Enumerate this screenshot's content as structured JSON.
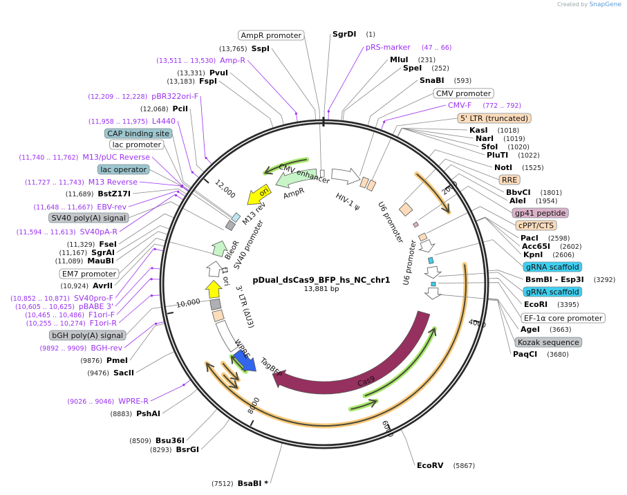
{
  "branding": {
    "prefix": "Created by",
    "name": "SnapGene"
  },
  "plasmid": {
    "name": "pDual_dsCas9_BFP_hs_NC_chr1",
    "length": "13,881 bp"
  },
  "enzymes": [
    {
      "name": "SgrDI",
      "pos": "(1)"
    },
    {
      "name": "MluI",
      "pos": "(231)"
    },
    {
      "name": "SpeI",
      "pos": "(252)"
    },
    {
      "name": "SnaBI",
      "pos": "(593)"
    },
    {
      "name": "KasI",
      "pos": "(1018)"
    },
    {
      "name": "NarI",
      "pos": "(1019)"
    },
    {
      "name": "SfoI",
      "pos": "(1020)"
    },
    {
      "name": "PluTI",
      "pos": "(1022)"
    },
    {
      "name": "NotI",
      "pos": "(1525)"
    },
    {
      "name": "BbvCI",
      "pos": "(1801)"
    },
    {
      "name": "AleI",
      "pos": "(1954)"
    },
    {
      "name": "PacI",
      "pos": "(2598)"
    },
    {
      "name": "Acc65I",
      "pos": "(2602)"
    },
    {
      "name": "KpnI",
      "pos": "(2606)"
    },
    {
      "name": "BsmBI  - Esp3I",
      "pos": "(3292)"
    },
    {
      "name": "EcoRI",
      "pos": "(3395)"
    },
    {
      "name": "AgeI",
      "pos": "(3663)"
    },
    {
      "name": "PaqCI",
      "pos": "(3680)"
    },
    {
      "name": "EcoRV",
      "pos": "(5867)"
    },
    {
      "name": "BsaBI *",
      "pos": "(7512)"
    },
    {
      "name": "BsrGI",
      "pos": "(8293)"
    },
    {
      "name": "Bsu36I",
      "pos": "(8509)"
    },
    {
      "name": "PshAI",
      "pos": "(8883)"
    },
    {
      "name": "SacII",
      "pos": "(9476)"
    },
    {
      "name": "PmeI",
      "pos": "(9876)"
    },
    {
      "name": "AvrII",
      "pos": "(10,924)"
    },
    {
      "name": "MauBI",
      "pos": "(11,089)"
    },
    {
      "name": "SgrAI",
      "pos": "(11,167)"
    },
    {
      "name": "FseI",
      "pos": "(11,329)"
    },
    {
      "name": "BstZ17I",
      "pos": "(11,689)"
    },
    {
      "name": "PciI",
      "pos": "(12,068)"
    },
    {
      "name": "FspI",
      "pos": "(13,183)"
    },
    {
      "name": "PvuI",
      "pos": "(13,331)"
    },
    {
      "name": "SspI",
      "pos": "(13,765)"
    }
  ],
  "primers": [
    {
      "name": "pRS-marker",
      "range": "(47 .. 66)"
    },
    {
      "name": "CMV-F",
      "range": "(772 .. 792)"
    },
    {
      "name": "WPRE-R",
      "range": "(9026 .. 9046)"
    },
    {
      "name": "BGH-rev",
      "range": "(9892 .. 9909)"
    },
    {
      "name": "F1ori-R",
      "range": "(10,255 .. 10,274)"
    },
    {
      "name": "F1ori-F",
      "range": "(10,465 .. 10,486)"
    },
    {
      "name": "pBABE 3'",
      "range": "(10,605 .. 10,625)"
    },
    {
      "name": "SV40pro-F",
      "range": "(10,852 .. 10,871)"
    },
    {
      "name": "SV40pA-R",
      "range": "(11,594 .. 11,613)"
    },
    {
      "name": "EBV-rev",
      "range": "(11,648 .. 11,667)"
    },
    {
      "name": "M13 Reverse",
      "range": "(11,727 .. 11,743)"
    },
    {
      "name": "M13/pUC Reverse",
      "range": "(11,740 .. 11,762)"
    },
    {
      "name": "L4440",
      "range": "(11,958 .. 11,975)"
    },
    {
      "name": "pBR322ori-F",
      "range": "(12,209 .. 12,228)"
    },
    {
      "name": "Amp-R",
      "range": "(13,511 .. 13,530)"
    }
  ],
  "feature_boxes": [
    {
      "name": "AmpR promoter",
      "color": "#ffffff"
    },
    {
      "name": "CMV promoter",
      "color": "#ffffff"
    },
    {
      "name": "5' LTR (truncated)",
      "color": "#fddcbc"
    },
    {
      "name": "RRE",
      "color": "#fddcbc"
    },
    {
      "name": "gp41 peptide",
      "color": "#dbb2c9"
    },
    {
      "name": "cPPT/CTS",
      "color": "#fddcbc"
    },
    {
      "name": "gRNA scaffold",
      "color": "#3fcff0"
    },
    {
      "name": "gRNA scaffold",
      "color": "#3fcff0"
    },
    {
      "name": "EF-1α core promoter",
      "color": "#ffffff"
    },
    {
      "name": "Kozak sequence",
      "color": "#c4c6c9"
    },
    {
      "name": "bGH poly(A) signal",
      "color": "#c4c6c9"
    },
    {
      "name": "EM7 promoter",
      "color": "#ffffff"
    },
    {
      "name": "SV40 poly(A) signal",
      "color": "#c4c6c9"
    },
    {
      "name": "lac operator",
      "color": "#9dc6cf"
    },
    {
      "name": "lac promoter",
      "color": "#ffffff"
    },
    {
      "name": "CAP binding site",
      "color": "#9dc6cf"
    }
  ],
  "inner_labels": [
    {
      "name": "CMV enhancer"
    },
    {
      "name": "HIV-1 ψ"
    },
    {
      "name": "U6 promoter"
    },
    {
      "name": "U6 promoter"
    },
    {
      "name": "Cas9"
    },
    {
      "name": "TagBFP"
    },
    {
      "name": "WPRE"
    },
    {
      "name": "3' LTR (ΔU3)"
    },
    {
      "name": "f1 ori"
    },
    {
      "name": "SV40 promoter"
    },
    {
      "name": "BleoR"
    },
    {
      "name": "M13 rev"
    },
    {
      "name": "ori"
    },
    {
      "name": "AmpR"
    }
  ],
  "ticks": [
    "2000",
    "4000",
    "6000",
    "8000",
    "10,000",
    "12,000"
  ],
  "colors": {
    "primer": "#9a30f0",
    "cas9": "#96305f",
    "orf_green": "#c8f5c8",
    "ori": "#ffff00",
    "tagbfp": "#3366ee",
    "orange_arc": "#f9c97a",
    "green_arc": "#a6e86a"
  }
}
